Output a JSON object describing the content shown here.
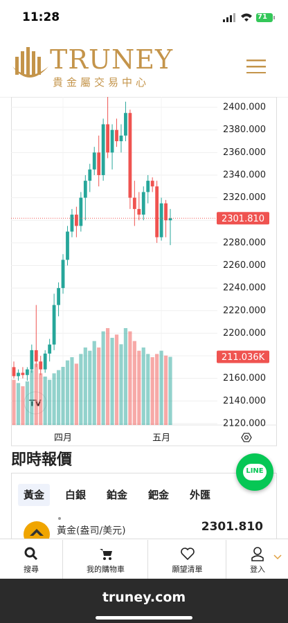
{
  "status_bar": {
    "time": "11:28",
    "battery": "71"
  },
  "header": {
    "brand": "TRUNEY",
    "subtitle": "貴金屬交易中心"
  },
  "chart_data": {
    "type": "candlestick",
    "categories": [
      null,
      null,
      null,
      null,
      null,
      null,
      null,
      null,
      null,
      null,
      null,
      "四月",
      null,
      null,
      null,
      null,
      null,
      null,
      null,
      null,
      null,
      null,
      null,
      null,
      null,
      null,
      null,
      null,
      null,
      null,
      null,
      null,
      null,
      "五月",
      null,
      null
    ],
    "open": [
      2170,
      2162,
      2165,
      2163,
      2168,
      2185,
      2175,
      2168,
      2182,
      2190,
      2225,
      2240,
      2265,
      2290,
      2305,
      2295,
      2320,
      2335,
      2345,
      2360,
      2340,
      2385,
      2360,
      2380,
      2370,
      2375,
      2395,
      2320,
      2310,
      2305,
      2325,
      2335,
      2330,
      2285,
      2315,
      2300
    ],
    "high": [
      2175,
      2168,
      2170,
      2170,
      2190,
      2225,
      2180,
      2185,
      2195,
      2235,
      2245,
      2270,
      2295,
      2310,
      2312,
      2325,
      2340,
      2350,
      2365,
      2375,
      2390,
      2410,
      2385,
      2390,
      2385,
      2405,
      2398,
      2335,
      2325,
      2330,
      2340,
      2338,
      2335,
      2320,
      2318,
      2310
    ],
    "low": [
      2160,
      2158,
      2160,
      2158,
      2165,
      2170,
      2163,
      2165,
      2175,
      2185,
      2215,
      2235,
      2260,
      2285,
      2285,
      2290,
      2300,
      2325,
      2340,
      2330,
      2335,
      2355,
      2345,
      2365,
      2360,
      2370,
      2310,
      2295,
      2300,
      2300,
      2315,
      2325,
      2280,
      2282,
      2285,
      2278
    ],
    "close": [
      2162,
      2165,
      2163,
      2168,
      2185,
      2175,
      2168,
      2182,
      2190,
      2225,
      2240,
      2265,
      2290,
      2305,
      2295,
      2320,
      2335,
      2345,
      2360,
      2340,
      2385,
      2360,
      2380,
      2370,
      2375,
      2395,
      2320,
      2310,
      2305,
      2325,
      2335,
      2330,
      2285,
      2315,
      2300,
      2301.81
    ],
    "close_label": "2301.810",
    "volume": [
      140,
      130,
      120,
      135,
      170,
      190,
      160,
      150,
      140,
      160,
      170,
      180,
      200,
      210,
      190,
      220,
      240,
      230,
      260,
      240,
      290,
      300,
      270,
      280,
      250,
      300,
      290,
      260,
      230,
      240,
      220,
      210,
      220,
      230,
      215,
      211.036
    ],
    "volume_label": "211.036K",
    "up_color": "#26a69a",
    "down_color": "#ef5350",
    "ylim": [
      2112,
      2408
    ],
    "yticks": [
      {
        "value": 2120,
        "label": "2120.000"
      },
      {
        "value": 2140,
        "label": "2140.000"
      },
      {
        "value": 2160,
        "label": "2160.000"
      },
      {
        "value": 2180,
        "label": "2180.000"
      },
      {
        "value": 2200,
        "label": "2200.000"
      },
      {
        "value": 2220,
        "label": "2220.000"
      },
      {
        "value": 2240,
        "label": "2240.000"
      },
      {
        "value": 2260,
        "label": "2260.000"
      },
      {
        "value": 2280,
        "label": "2280.000"
      },
      {
        "value": 2300,
        "label": "2300.000"
      },
      {
        "value": 2320,
        "label": "2320.000"
      },
      {
        "value": 2340,
        "label": "2340.000"
      },
      {
        "value": 2360,
        "label": "2360.000"
      },
      {
        "value": 2380,
        "label": "2380.000"
      },
      {
        "value": 2400,
        "label": "2400.000"
      }
    ],
    "grid": true
  },
  "section_title": "即時報價",
  "tabs": [
    "黃金",
    "白銀",
    "鉑金",
    "鈀金",
    "外匯"
  ],
  "quotes": [
    {
      "name": "黃金(盎司/美元)",
      "price": "2301.810"
    }
  ],
  "line_button": "LINE",
  "nav": [
    "搜尋",
    "我的購物車",
    "願望清單",
    "登入"
  ],
  "url": "truney.com"
}
